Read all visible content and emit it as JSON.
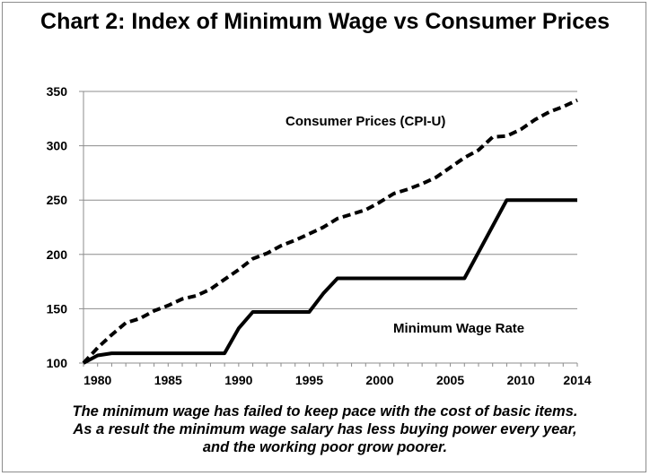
{
  "chart_data": {
    "type": "line",
    "title": "Chart 2: Index of Minimum Wage vs Consumer Prices",
    "xlabel": "",
    "ylabel": "",
    "xlim": [
      1979,
      2014
    ],
    "ylim": [
      100,
      350
    ],
    "xticks": [
      "1980",
      "1985",
      "1990",
      "1995",
      "2000",
      "2005",
      "2010",
      "2014"
    ],
    "yticks": [
      "100",
      "150",
      "200",
      "250",
      "300",
      "350"
    ],
    "grid": "horizontal",
    "legend": "none",
    "series": [
      {
        "name": "Consumer Prices (CPI-U)",
        "style": "dashed",
        "color": "#000000",
        "x": [
          1979,
          1980,
          1981,
          1982,
          1983,
          1984,
          1985,
          1986,
          1987,
          1988,
          1989,
          1990,
          1991,
          1992,
          1993,
          1994,
          1995,
          1996,
          1997,
          1998,
          1999,
          2000,
          2001,
          2002,
          2003,
          2004,
          2005,
          2006,
          2007,
          2008,
          2009,
          2010,
          2011,
          2012,
          2013,
          2014
        ],
        "values": [
          100,
          114,
          126,
          137,
          141,
          148,
          153,
          159,
          162,
          168,
          177,
          186,
          196,
          201,
          208,
          213,
          219,
          225,
          233,
          237,
          241,
          248,
          256,
          260,
          265,
          271,
          280,
          289,
          296,
          308,
          309,
          315,
          324,
          331,
          336,
          342
        ]
      },
      {
        "name": "Minimum Wage Rate",
        "style": "solid",
        "color": "#000000",
        "x": [
          1979,
          1980,
          1981,
          1982,
          1983,
          1984,
          1985,
          1986,
          1987,
          1988,
          1989,
          1990,
          1991,
          1992,
          1993,
          1994,
          1995,
          1996,
          1997,
          1998,
          1999,
          2000,
          2001,
          2002,
          2003,
          2004,
          2005,
          2006,
          2007,
          2008,
          2009,
          2010,
          2011,
          2012,
          2013,
          2014
        ],
        "values": [
          100,
          107,
          109,
          109,
          109,
          109,
          109,
          109,
          109,
          109,
          109,
          132,
          147,
          147,
          147,
          147,
          147,
          164,
          178,
          178,
          178,
          178,
          178,
          178,
          178,
          178,
          178,
          178,
          202,
          226,
          250,
          250,
          250,
          250,
          250,
          250
        ]
      }
    ]
  },
  "caption": {
    "line1": "The minimum wage has failed to keep pace with the cost of basic items.",
    "line2": "As a result the minimum wage salary has less buying power every year,",
    "line3": "and the working poor grow poorer."
  }
}
